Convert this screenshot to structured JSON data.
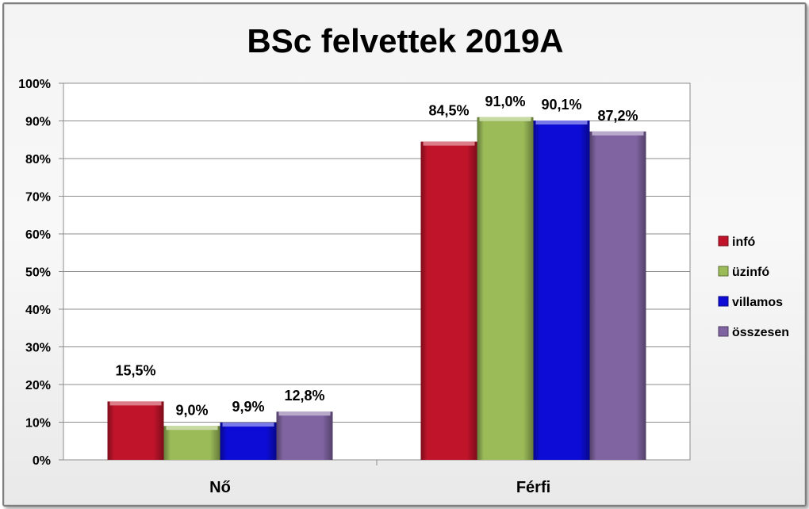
{
  "chart_data": {
    "type": "bar",
    "title": "BSc felvettek 2019A",
    "categories": [
      "Nő",
      "Férfi"
    ],
    "series": [
      {
        "name": "infó",
        "values": [
          15.5,
          84.5
        ],
        "labels": [
          "15,5%",
          "84,5%"
        ],
        "color": "#c0142a"
      },
      {
        "name": "üzinfó",
        "values": [
          9.0,
          91.0
        ],
        "labels": [
          "9,0%",
          "91,0%"
        ],
        "color": "#9bbb59"
      },
      {
        "name": "villamos",
        "values": [
          9.9,
          90.1
        ],
        "labels": [
          "9,9%",
          "90,1%"
        ],
        "color": "#0c0cd6"
      },
      {
        "name": "összesen",
        "values": [
          12.8,
          87.2
        ],
        "labels": [
          "12,8%",
          "87,2%"
        ],
        "color": "#8064a2"
      }
    ],
    "y_ticks": [
      "0%",
      "10%",
      "20%",
      "30%",
      "40%",
      "50%",
      "60%",
      "70%",
      "80%",
      "90%",
      "100%"
    ],
    "ylim": [
      0,
      100
    ],
    "grid": true,
    "legend_position": "right"
  }
}
